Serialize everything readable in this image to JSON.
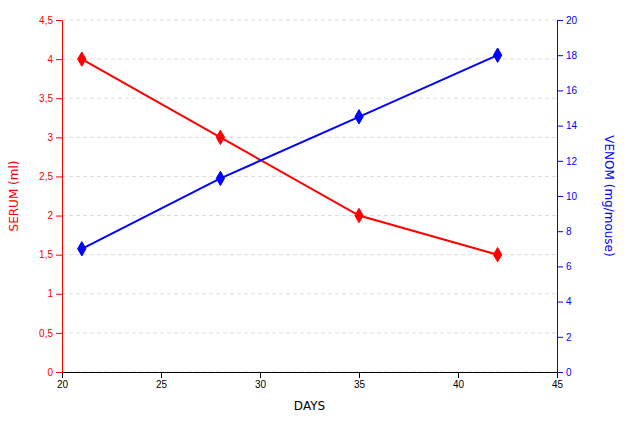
{
  "chart_data": {
    "type": "line",
    "xlabel": "DAYS",
    "ylabel": "SERUM (ml)",
    "y2label": "VENOM (mg/mouse)",
    "x": [
      21,
      28,
      35,
      42
    ],
    "xlim": [
      20,
      45
    ],
    "xticks": [
      20,
      25,
      30,
      35,
      40,
      45
    ],
    "ylim": [
      0,
      4.5
    ],
    "yticks": [
      0,
      {
        "value": 0.5,
        "label": "0,5"
      },
      1,
      {
        "value": 1.5,
        "label": "1,5"
      },
      2,
      {
        "value": 2.5,
        "label": "2,5"
      },
      3,
      {
        "value": 3.5,
        "label": "3,5"
      },
      4,
      {
        "value": 4.5,
        "label": "4,5"
      }
    ],
    "y2lim": [
      0,
      20
    ],
    "y2ticks": [
      0,
      2,
      4,
      6,
      8,
      10,
      12,
      14,
      16,
      18,
      20
    ],
    "grid": true,
    "series": [
      {
        "color": "red",
        "marker": "diamond",
        "values": [
          4.0,
          3.0,
          2.0,
          1.5
        ]
      },
      {
        "color": "blue",
        "marker": "diamond",
        "axis": "y2",
        "values": [
          7.0,
          11.0,
          14.5,
          18.0
        ]
      }
    ]
  }
}
